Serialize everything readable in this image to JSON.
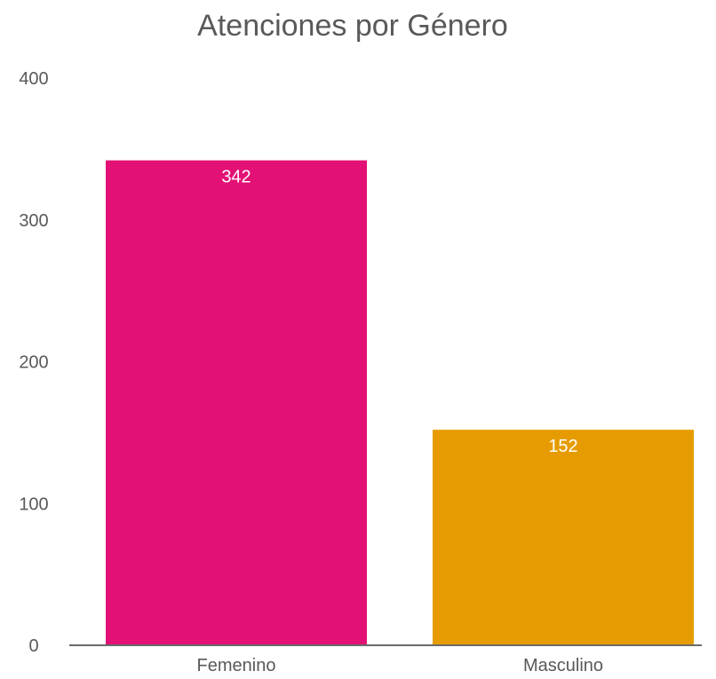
{
  "chart_data": {
    "type": "bar",
    "title": "Atenciones por Género",
    "xlabel": "",
    "ylabel": "",
    "categories": [
      "Femenino",
      "Masculino"
    ],
    "values": [
      342,
      152
    ],
    "data_labels": [
      "342",
      "152"
    ],
    "colors": [
      "#E31175",
      "#E69C00"
    ],
    "ylim": [
      0,
      400
    ],
    "yticks": [
      0,
      100,
      200,
      300,
      400
    ],
    "ytick_labels": [
      "0",
      "100",
      "200",
      "300",
      "400"
    ],
    "grid": false,
    "legend": "none",
    "axis_color": "#6b6b6b"
  }
}
